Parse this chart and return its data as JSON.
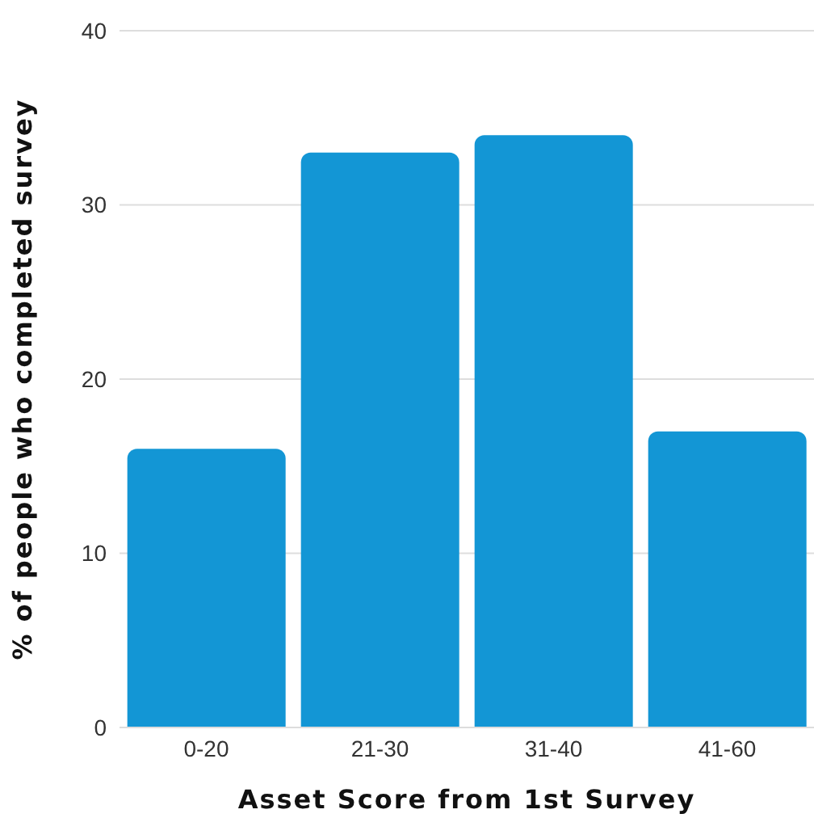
{
  "chart_data": {
    "type": "bar",
    "xlabel": "Asset Score from 1st Survey",
    "ylabel": "% of people who completed survey",
    "categories": [
      "0-20",
      "21-30",
      "31-40",
      "41-60"
    ],
    "values": [
      16,
      33,
      34,
      17
    ],
    "color": "#1396d5",
    "ylim": [
      0,
      40
    ],
    "yticks": [
      0,
      10,
      20,
      30,
      40
    ],
    "grid": "y"
  }
}
